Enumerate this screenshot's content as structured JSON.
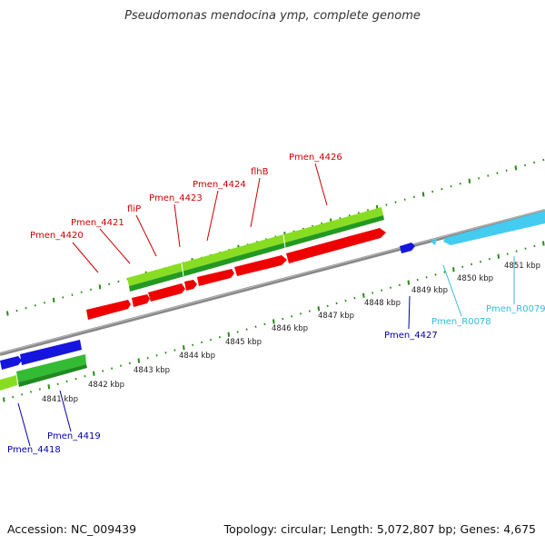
{
  "title": "Pseudomonas mendocina ymp, complete genome",
  "footer": {
    "accession": "Accession: NC_009439",
    "summary": "Topology: circular; Length: 5,072,807 bp; Genes: 4,675"
  },
  "colors": {
    "backbone": "#8c8c8c",
    "tick": "#2a8a1a",
    "label_red": "#cc0000",
    "label_blue": "#0000aa",
    "label_cyan": "#33bbdd",
    "gene_red": "#ee0000",
    "gene_blue": "#1515dd",
    "gene_cyan": "#44ccf0",
    "cds_light": "#88dd22",
    "cds_dark": "#229922",
    "cds_green": "#33bb33"
  },
  "kbp_labels": [
    "4841 kbp",
    "4842 kbp",
    "4843 kbp",
    "4844 kbp",
    "4845 kbp",
    "4846 kbp",
    "4847 kbp",
    "4848 kbp",
    "4849 kbp",
    "4850 kbp",
    "4851 kbp"
  ],
  "gene_labels": {
    "top": [
      "Pmen_4420",
      "Pmen_4421",
      "fliP",
      "Pmen_4423",
      "Pmen_4424",
      "flhB",
      "Pmen_4426"
    ],
    "bottom": [
      "Pmen_4418",
      "Pmen_4419",
      "Pmen_4427",
      "Pmen_R0078",
      "Pmen_R0079"
    ]
  }
}
